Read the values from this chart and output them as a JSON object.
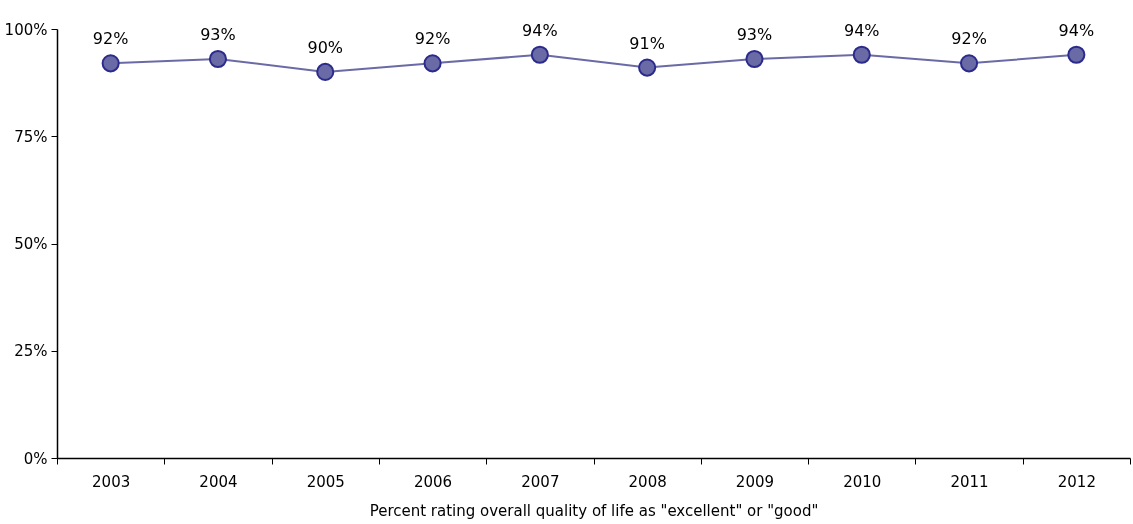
{
  "chart_data": {
    "type": "line",
    "xlabel": "Percent rating overall quality of life as \"excellent\" or \"good\"",
    "categories": [
      "2003",
      "2004",
      "2005",
      "2006",
      "2007",
      "2008",
      "2009",
      "2010",
      "2011",
      "2012"
    ],
    "series": [
      {
        "color": "#6a6aa6",
        "values": [
          92,
          93,
          90,
          92,
          94,
          91,
          93,
          94,
          92,
          94
        ],
        "value_labels": [
          "92%",
          "93%",
          "90%",
          "92%",
          "94%",
          "91%",
          "93%",
          "94%",
          "92%",
          "94%"
        ]
      }
    ],
    "ylim": [
      0,
      100
    ],
    "yticks": [
      {
        "value": 0,
        "label": "0%"
      },
      {
        "value": 25,
        "label": "25%"
      },
      {
        "value": 50,
        "label": "50%"
      },
      {
        "value": 75,
        "label": "75%"
      },
      {
        "value": 100,
        "label": "100%"
      }
    ],
    "grid": false,
    "marker": "circle",
    "line_style": "solid"
  }
}
